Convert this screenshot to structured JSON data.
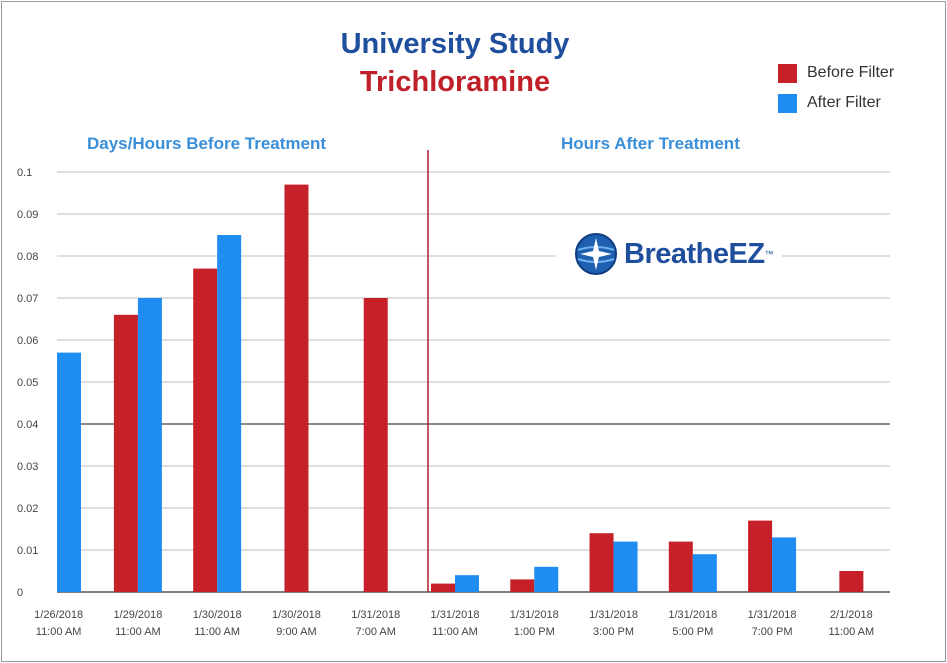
{
  "colors": {
    "before": "#c62028",
    "after": "#1e8cf0",
    "title1": "#1f4e9c",
    "title2": "#c0202a",
    "section": "#3a8fd8"
  },
  "title": "University Study",
  "subtitle": "Trichloramine",
  "legend": [
    {
      "label": "Before Filter",
      "color": "#c62028"
    },
    {
      "label": "After Filter",
      "color": "#1e8cf0"
    }
  ],
  "sections": {
    "before": "Days/Hours Before Treatment",
    "after": "Hours After Treatment"
  },
  "logo": {
    "text": "BreatheEZ",
    "mark": "™",
    "icon": "globe-star-icon"
  },
  "chart_data": {
    "type": "bar",
    "ylim": [
      0,
      0.1
    ],
    "yticks": [
      "0",
      "0.01",
      "0.02",
      "0.03",
      "0.04",
      "0.05",
      "0.06",
      "0.07",
      "0.08",
      "0.09",
      "0.1"
    ],
    "grid": true,
    "legend_position": "top-right",
    "categories": [
      [
        "1/26/2018",
        "11:00 AM"
      ],
      [
        "1/29/2018",
        "11:00 AM"
      ],
      [
        "1/30/2018",
        "11:00 AM"
      ],
      [
        "1/30/2018",
        "9:00 AM"
      ],
      [
        "1/31/2018",
        "7:00 AM"
      ],
      [
        "1/31/2018",
        "11:00 AM"
      ],
      [
        "1/31/2018",
        "1:00 PM"
      ],
      [
        "1/31/2018",
        "3:00 PM"
      ],
      [
        "1/31/2018",
        "5:00 PM"
      ],
      [
        "1/31/2018",
        "7:00 PM"
      ],
      [
        "2/1/2018",
        "11:00 AM"
      ]
    ],
    "series": [
      {
        "name": "Before Filter",
        "values": [
          null,
          0.066,
          0.077,
          0.097,
          0.07,
          0.002,
          0.003,
          0.014,
          0.012,
          0.017,
          0.005
        ]
      },
      {
        "name": "After Filter",
        "values": [
          0.057,
          0.07,
          0.085,
          null,
          null,
          0.004,
          0.006,
          0.012,
          0.009,
          0.013,
          null
        ]
      }
    ],
    "divider_after_category": 4
  }
}
